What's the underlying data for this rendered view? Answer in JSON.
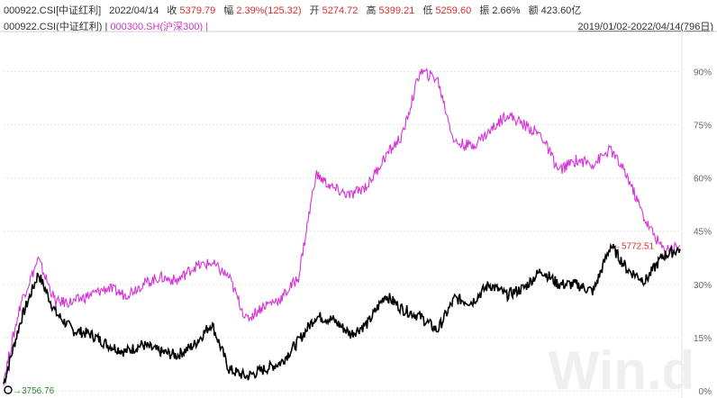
{
  "header": {
    "code": "000922.CSI[中证红利]",
    "date": "2022/04/14",
    "close_label": "收",
    "close": "5379.79",
    "change_label": "幅",
    "change": "2.39%(125.32)",
    "open_label": "开",
    "open": "5274.72",
    "high_label": "高",
    "high": "5399.21",
    "low_label": "低",
    "low": "5259.60",
    "amplitude_label": "振",
    "amplitude": "2.66%",
    "amount_label": "额",
    "amount": "423.60亿",
    "legend_series1": "000922.CSI(中证红利)",
    "legend_sep": "|",
    "legend_series2": "000300.SH(沪深300)",
    "legend_sep2": "|",
    "range": "2019/01/02-2022/04/14(796日)"
  },
  "watermark": "Win.d",
  "colors": {
    "series1": "#000000",
    "series2": "#d633d6",
    "grid": "#e6e6e6",
    "accent": "#d8302f"
  },
  "chart_data": {
    "type": "line",
    "xlim": [
      "2019/01/02",
      "2022/04/14"
    ],
    "ylim": [
      0,
      100
    ],
    "y_unit": "%",
    "yticks": [
      "0%",
      "15%",
      "30%",
      "45%",
      "60%",
      "75%",
      "90%"
    ],
    "grid": true,
    "annotations": {
      "max_label": "5772.51",
      "min_label": "3756.76"
    },
    "series": [
      {
        "name": "000922.CSI(中证红利)",
        "x": [
          "2019/01",
          "2019/02",
          "2019/03",
          "2019/04",
          "2019/05",
          "2019/06",
          "2019/07",
          "2019/08",
          "2019/09",
          "2019/10",
          "2019/11",
          "2019/12",
          "2020/01",
          "2020/02",
          "2020/03",
          "2020/04",
          "2020/05",
          "2020/06",
          "2020/07",
          "2020/08",
          "2020/09",
          "2020/10",
          "2020/11",
          "2020/12",
          "2021/01",
          "2021/02",
          "2021/03",
          "2021/04",
          "2021/05",
          "2021/06",
          "2021/07",
          "2021/08",
          "2021/09",
          "2021/10",
          "2021/11",
          "2021/12",
          "2022/01",
          "2022/02",
          "2022/03",
          "2022/04"
        ],
        "values": [
          2,
          20,
          33,
          22,
          17,
          16,
          13,
          11,
          13,
          11,
          10,
          13,
          19,
          6,
          4,
          6,
          8,
          14,
          21,
          20,
          16,
          19,
          27,
          23,
          21,
          17,
          26,
          25,
          30,
          27,
          29,
          34,
          30,
          30,
          28,
          41,
          34,
          31,
          38,
          40
        ]
      },
      {
        "name": "000300.SH(沪深300)",
        "x": [
          "2019/01",
          "2019/02",
          "2019/03",
          "2019/04",
          "2019/05",
          "2019/06",
          "2019/07",
          "2019/08",
          "2019/09",
          "2019/10",
          "2019/11",
          "2019/12",
          "2020/01",
          "2020/02",
          "2020/03",
          "2020/04",
          "2020/05",
          "2020/06",
          "2020/07",
          "2020/08",
          "2020/09",
          "2020/10",
          "2020/11",
          "2020/12",
          "2021/01",
          "2021/02",
          "2021/03",
          "2021/04",
          "2021/05",
          "2021/06",
          "2021/07",
          "2021/08",
          "2021/09",
          "2021/10",
          "2021/11",
          "2021/12",
          "2022/01",
          "2022/02",
          "2022/03",
          "2022/04"
        ],
        "values": [
          3,
          25,
          37,
          25,
          25,
          27,
          29,
          27,
          30,
          32,
          31,
          35,
          36,
          32,
          20,
          24,
          26,
          32,
          61,
          57,
          55,
          58,
          66,
          72,
          90,
          88,
          70,
          69,
          73,
          78,
          75,
          72,
          62,
          65,
          64,
          68,
          60,
          48,
          40,
          41
        ]
      }
    ]
  }
}
